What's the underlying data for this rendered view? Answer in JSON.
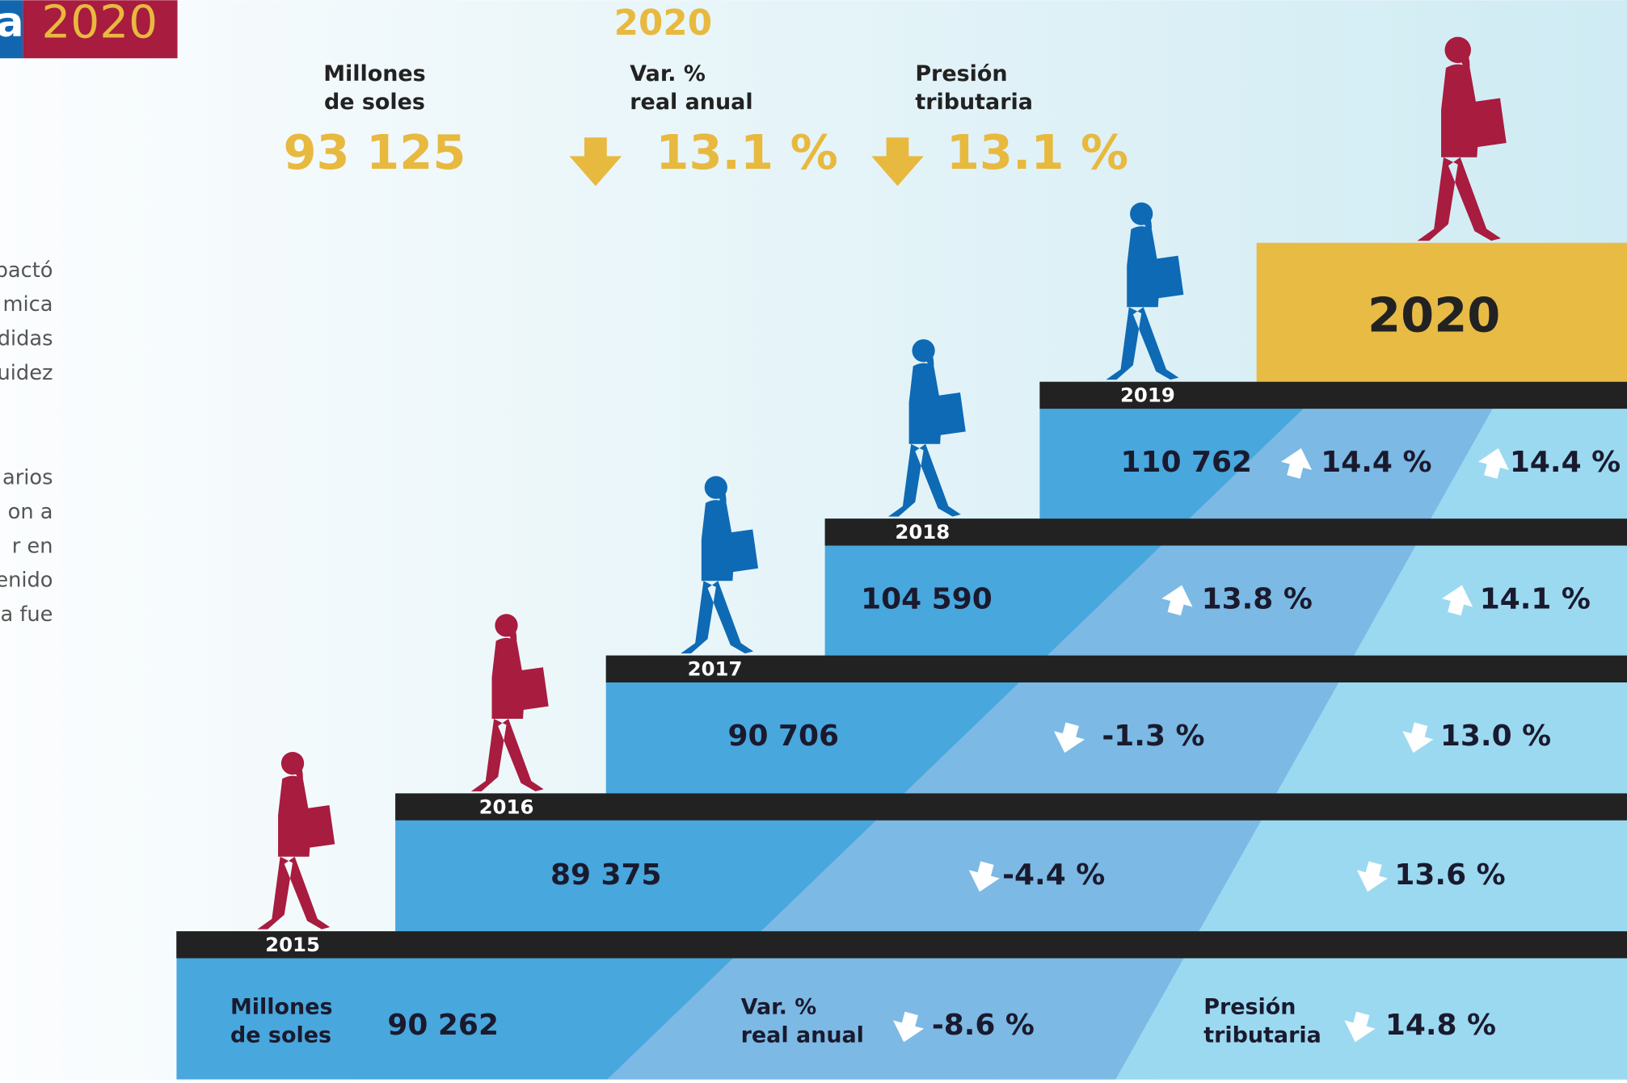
{
  "header": {
    "fragment": "al",
    "year": "2020"
  },
  "left_text": [
    "pactó",
    "mica",
    "didas",
    "uidez",
    "arios",
    "on a",
    "r en",
    "enido",
    "a fue"
  ],
  "summary": {
    "year": "2020",
    "items": [
      {
        "label": [
          "Millones",
          "de soles"
        ],
        "value": "93 125"
      },
      {
        "label": [
          "Var. %",
          "real anual"
        ],
        "value": "13.1 %",
        "direction": "down"
      },
      {
        "label": [
          "Presión",
          "tributaria"
        ],
        "value": "13.1 %",
        "direction": "down"
      }
    ]
  },
  "row_labels": {
    "amount": [
      "Millones",
      "de soles"
    ],
    "variation": [
      "Var. %",
      "real anual"
    ],
    "pressure": [
      "Presión",
      "tributaria"
    ]
  },
  "steps": [
    {
      "year": "2015",
      "amount": "90 262",
      "variation": "-8.6 %",
      "variation_direction": "down",
      "pressure": "14.8 %",
      "pressure_direction": "down"
    },
    {
      "year": "2016",
      "amount": "89 375",
      "variation": "-4.4 %",
      "variation_direction": "down",
      "pressure": "13.6 %",
      "pressure_direction": "down"
    },
    {
      "year": "2017",
      "amount": "90 706",
      "variation": "-1.3 %",
      "variation_direction": "down",
      "pressure": "13.0 %",
      "pressure_direction": "down"
    },
    {
      "year": "2018",
      "amount": "104 590",
      "variation": "13.8 %",
      "variation_direction": "up",
      "pressure": "14.1 %",
      "pressure_direction": "up"
    },
    {
      "year": "2019",
      "amount": "110 762",
      "variation": "14.4 %",
      "variation_direction": "up",
      "pressure": "14.4 %",
      "pressure_direction": "up"
    }
  ],
  "top_step": "2020"
}
